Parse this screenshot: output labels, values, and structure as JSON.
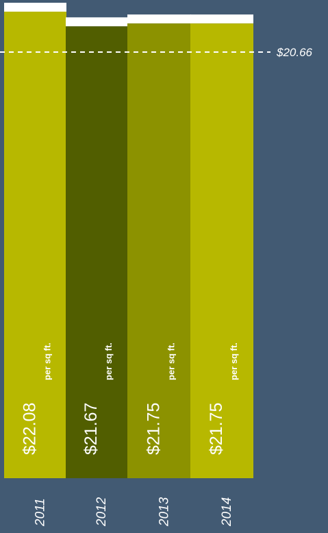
{
  "chart_data": {
    "type": "bar",
    "categories": [
      "2011",
      "2012",
      "2013",
      "2014"
    ],
    "values": [
      22.08,
      21.67,
      21.75,
      21.75
    ],
    "value_labels": [
      "$22.08",
      "$21.67",
      "$21.75",
      "$21.75"
    ],
    "unit_label": "per sq ft.",
    "reference_line": {
      "value": 20.66,
      "label": "$20.66",
      "style": "dashed"
    },
    "colors": [
      "#b7b800",
      "#515e00",
      "#8c9200",
      "#b7b800"
    ],
    "cap_color": "#ffffff",
    "title": "",
    "xlabel": "",
    "ylabel": "",
    "grid": false,
    "legend": "none"
  }
}
